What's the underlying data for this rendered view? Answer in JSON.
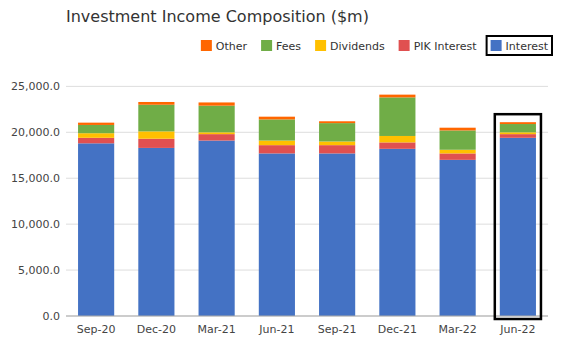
{
  "chart_data": {
    "type": "bar",
    "stacked": true,
    "grid": true,
    "legend": "top",
    "title": "Investment Income Composition ($m)",
    "categories": [
      "Sep-20",
      "Dec-20",
      "Mar-21",
      "Jun-21",
      "Sep-21",
      "Dec-21",
      "Mar-22",
      "Jun-22"
    ],
    "series": [
      {
        "name": "Interest",
        "color": "#4472C4",
        "values": [
          18800,
          18300,
          19100,
          17700,
          17700,
          18200,
          17000,
          19400
        ]
      },
      {
        "name": "PIK Interest",
        "color": "#E05050",
        "values": [
          600,
          1000,
          700,
          900,
          900,
          700,
          700,
          400
        ]
      },
      {
        "name": "Dividends",
        "color": "#FFC000",
        "values": [
          500,
          800,
          200,
          500,
          400,
          700,
          400,
          200
        ]
      },
      {
        "name": "Fees",
        "color": "#70AD47",
        "values": [
          900,
          2900,
          2900,
          2300,
          2000,
          4200,
          2100,
          900
        ]
      },
      {
        "name": "Other",
        "color": "#FF6600",
        "values": [
          250,
          300,
          350,
          300,
          200,
          300,
          300,
          200
        ]
      }
    ],
    "ylim": [
      0,
      27000
    ],
    "yticks": [
      {
        "value": 0,
        "label": "0.0"
      },
      {
        "value": 5000,
        "label": "5,000.0"
      },
      {
        "value": 10000,
        "label": "10,000.0"
      },
      {
        "value": 15000,
        "label": "15,000.0"
      },
      {
        "value": 20000,
        "label": "20,000.0"
      },
      {
        "value": 25000,
        "label": "25,000.0"
      }
    ]
  }
}
